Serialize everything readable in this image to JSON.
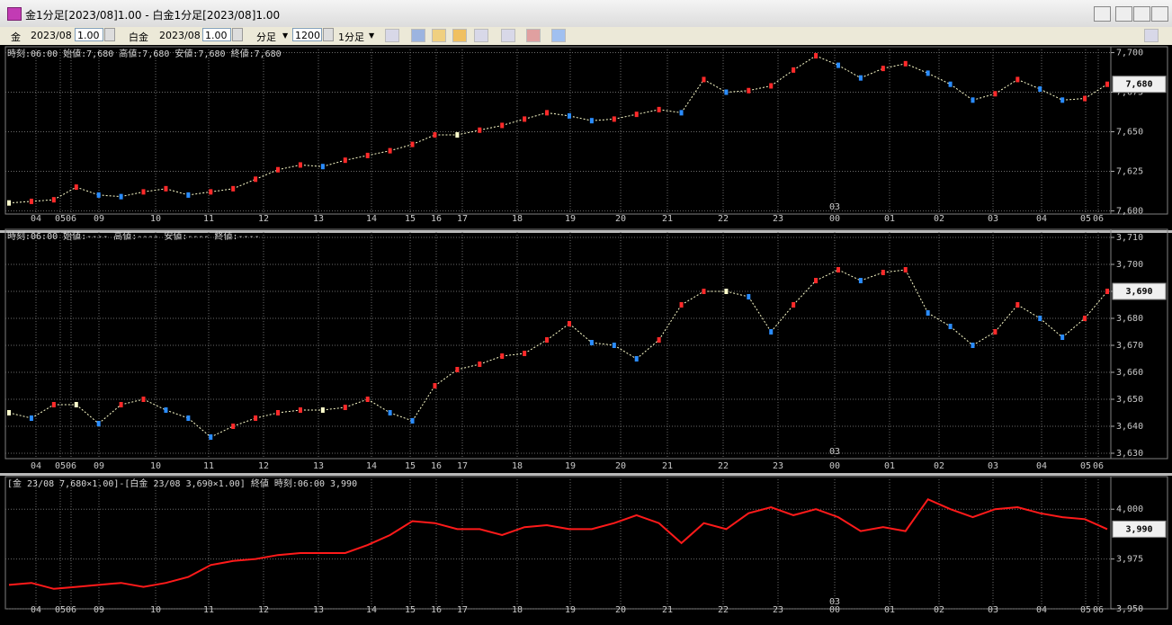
{
  "window": {
    "title": "金1分足[2023/08]1.00 - 白金1分足[2023/08]1.00"
  },
  "toolbar": {
    "instrument_1": "金",
    "month_1": "2023/08",
    "multiplier_1": "1.00",
    "instrument_2": "白金",
    "month_2": "2023/08",
    "multiplier_2": "1.00",
    "timeframe_unit": "分足",
    "bar_count": "1200",
    "timeframe": "1分足"
  },
  "chart_data": [
    {
      "type": "candle-line",
      "info": "時刻:06:00 始値:7,680 高値:7,680 安値:7,680 終値:7,680",
      "color": "#ffffcc",
      "up_color": "#ff2a2a",
      "down_color": "#2a8cff",
      "values": [
        7605,
        7606,
        7607,
        7615,
        7610,
        7609,
        7612,
        7614,
        7610,
        7612,
        7614,
        7620,
        7626,
        7629,
        7628,
        7632,
        7635,
        7638,
        7642,
        7648,
        7648,
        7651,
        7654,
        7658,
        7662,
        7660,
        7657,
        7658,
        7661,
        7664,
        7662,
        7683,
        7675,
        7676,
        7679,
        7689,
        7698,
        7692,
        7684,
        7690,
        7693,
        7687,
        7680,
        7670,
        7674,
        7683,
        7677,
        7670,
        7671,
        7680
      ],
      "ylim": [
        7598,
        7702
      ],
      "yticks": [
        {
          "value": 7600,
          "label": "7,600"
        },
        {
          "value": 7625,
          "label": "7,625"
        },
        {
          "value": 7650,
          "label": "7,650"
        },
        {
          "value": 7675,
          "label": "7,675"
        },
        {
          "value": 7700,
          "label": "7,700"
        }
      ],
      "last_value": {
        "value": 7680,
        "label": "7,680"
      },
      "x_labels": [
        "04",
        "05",
        "06",
        "09",
        "10",
        "11",
        "12",
        "13",
        "14",
        "15",
        "16",
        "17",
        "18",
        "19",
        "20",
        "21",
        "22",
        "23",
        "00",
        "01",
        "02",
        "03",
        "04",
        "05",
        "06"
      ],
      "x_marker": "03",
      "grid": true
    },
    {
      "type": "candle-line",
      "info": "時刻:06:00 始値:---- 高値:---- 安値:---- 終値:----",
      "color": "#ffffcc",
      "up_color": "#ff2a2a",
      "down_color": "#2a8cff",
      "values": [
        3645,
        3643,
        3648,
        3648,
        3641,
        3648,
        3650,
        3646,
        3643,
        3636,
        3640,
        3643,
        3645,
        3646,
        3646,
        3647,
        3650,
        3645,
        3642,
        3655,
        3661,
        3663,
        3666,
        3667,
        3672,
        3678,
        3671,
        3670,
        3665,
        3672,
        3685,
        3690,
        3690,
        3688,
        3675,
        3685,
        3694,
        3698,
        3694,
        3697,
        3698,
        3682,
        3677,
        3670,
        3675,
        3685,
        3680,
        3673,
        3680,
        3690
      ],
      "ylim": [
        3628,
        3712
      ],
      "yticks": [
        {
          "value": 3630,
          "label": "3,630"
        },
        {
          "value": 3640,
          "label": "3,640"
        },
        {
          "value": 3650,
          "label": "3,650"
        },
        {
          "value": 3660,
          "label": "3,660"
        },
        {
          "value": 3670,
          "label": "3,670"
        },
        {
          "value": 3680,
          "label": "3,680"
        },
        {
          "value": 3690,
          "label": "3,690"
        },
        {
          "value": 3700,
          "label": "3,700"
        },
        {
          "value": 3710,
          "label": "3,710"
        }
      ],
      "last_value": {
        "value": 3690,
        "label": "3,690"
      },
      "x_labels": [
        "04",
        "05",
        "06",
        "09",
        "10",
        "11",
        "12",
        "13",
        "14",
        "15",
        "16",
        "17",
        "18",
        "19",
        "20",
        "21",
        "22",
        "23",
        "00",
        "01",
        "02",
        "03",
        "04",
        "05",
        "06"
      ],
      "x_marker": "03",
      "grid": true
    },
    {
      "type": "line",
      "info": "[金 23/08 7,680×1.00]-[白金 23/08 3,690×1.00] 終値 時刻:06:00 3,990",
      "color": "#ff1a1a",
      "values": [
        3962,
        3963,
        3960,
        3961,
        3962,
        3963,
        3961,
        3963,
        3966,
        3972,
        3974,
        3975,
        3977,
        3978,
        3978,
        3978,
        3982,
        3987,
        3994,
        3993,
        3990,
        3990,
        3987,
        3991,
        3992,
        3990,
        3990,
        3993,
        3997,
        3993,
        3983,
        3993,
        3990,
        3998,
        4001,
        3997,
        4000,
        3996,
        3989,
        3991,
        3989,
        4005,
        4000,
        3996,
        4000,
        4001,
        3998,
        3996,
        3995,
        3990
      ],
      "ylim": [
        3950,
        4015
      ],
      "yticks": [
        {
          "value": 3950,
          "label": "3,950"
        },
        {
          "value": 3975,
          "label": "3,975"
        },
        {
          "value": 4000,
          "label": "4,000"
        }
      ],
      "last_value": {
        "value": 3990,
        "label": "3,990"
      },
      "x_labels": [
        "04",
        "05",
        "06",
        "09",
        "10",
        "11",
        "12",
        "13",
        "14",
        "15",
        "16",
        "17",
        "18",
        "19",
        "20",
        "21",
        "22",
        "23",
        "00",
        "01",
        "02",
        "03",
        "04",
        "05",
        "06"
      ],
      "x_marker": "03",
      "grid": true
    }
  ]
}
